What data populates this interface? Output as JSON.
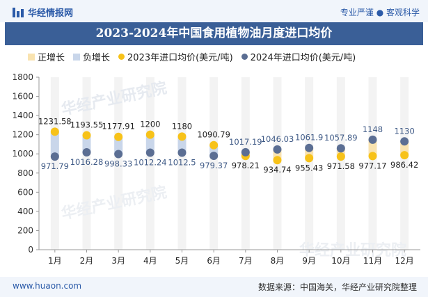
{
  "header": {
    "brand": "华经情报网",
    "tagline": "专业严谨 ● 客观科学"
  },
  "chart_data": {
    "type": "dumbbell",
    "title": "2023-2024年中国食用植物油月度进口均价",
    "categories": [
      "1月",
      "2月",
      "3月",
      "4月",
      "5月",
      "6月",
      "7月",
      "8月",
      "9月",
      "10月",
      "11月",
      "12月"
    ],
    "series": [
      {
        "name": "2023年进口均价(美元/吨)",
        "values": [
          1231.58,
          1193.55,
          1177.91,
          1200,
          1180,
          1090.79,
          978.21,
          934.74,
          955.43,
          971.58,
          977.17,
          986.42
        ]
      },
      {
        "name": "2024年进口均价(美元/吨)",
        "values": [
          971.79,
          1016.28,
          998.33,
          1012.24,
          1012.5,
          979.37,
          1017.19,
          1046.03,
          1061.9,
          1057.89,
          1148,
          1130
        ]
      }
    ],
    "legend": [
      "正增长",
      "负增长",
      "2023年进口均价(美元/吨)",
      "2024年进口均价(美元/吨)"
    ],
    "ylim": [
      0,
      1800
    ],
    "yticks": [
      0,
      200,
      400,
      600,
      800,
      1000,
      1200,
      1400,
      1600,
      1800
    ],
    "colors": {
      "positive": "#f9e3b0",
      "negative": "#c9d6ea",
      "s2023": "#f7c219",
      "s2024": "#5b6e93"
    },
    "watermark": "华经产业研究院"
  },
  "footer": {
    "url": "www.huaon.com",
    "source": "数据来源：中国海关，华经产业研究院整理"
  }
}
